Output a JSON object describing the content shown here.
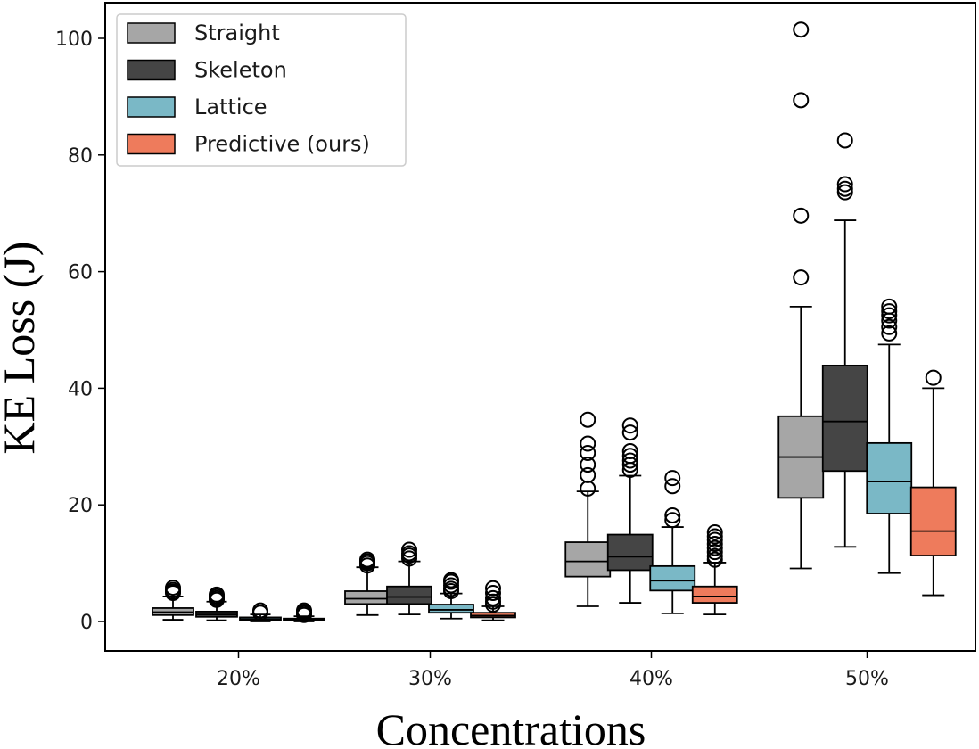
{
  "chart_data": {
    "type": "boxplot",
    "title": "",
    "xlabel": "Concentrations",
    "ylabel": "KE Loss (J)",
    "ylim": [
      -5,
      106
    ],
    "yticks": [
      0,
      20,
      40,
      60,
      80,
      100
    ],
    "categories": [
      "20%",
      "30%",
      "40%",
      "50%"
    ],
    "legend_position": "upper-left",
    "series": [
      {
        "name": "Straight",
        "color": "#a6a6a6",
        "boxes": [
          {
            "whislo": 0.3,
            "q1": 1.1,
            "med": 1.6,
            "q3": 2.3,
            "whishi": 4.3,
            "fliers": [
              4.9,
              5.1,
              5.4,
              5.8
            ]
          },
          {
            "whislo": 1.1,
            "q1": 3.0,
            "med": 3.9,
            "q3": 5.2,
            "whishi": 9.3,
            "fliers": [
              9.6,
              10.0,
              10.3,
              10.6
            ]
          },
          {
            "whislo": 2.6,
            "q1": 7.7,
            "med": 10.3,
            "q3": 13.6,
            "whishi": 22.3,
            "fliers": [
              22.8,
              25.1,
              26.9,
              28.9,
              30.5,
              34.6
            ]
          },
          {
            "whislo": 9.1,
            "q1": 21.2,
            "med": 28.2,
            "q3": 35.2,
            "whishi": 54.0,
            "fliers": [
              59.0,
              69.6,
              89.4,
              101.5
            ]
          }
        ]
      },
      {
        "name": "Skeleton",
        "color": "#454545",
        "boxes": [
          {
            "whislo": 0.2,
            "q1": 0.8,
            "med": 1.2,
            "q3": 1.7,
            "whishi": 3.4,
            "fliers": [
              3.7,
              4.0,
              4.3,
              4.6
            ]
          },
          {
            "whislo": 1.2,
            "q1": 3.0,
            "med": 4.2,
            "q3": 6.0,
            "whishi": 10.3,
            "fliers": [
              10.8,
              11.3,
              11.7,
              12.3
            ]
          },
          {
            "whislo": 3.2,
            "q1": 8.8,
            "med": 11.1,
            "q3": 14.9,
            "whishi": 25.0,
            "fliers": [
              26.0,
              26.9,
              27.6,
              28.4,
              29.2,
              32.4,
              33.6
            ]
          },
          {
            "whislo": 12.8,
            "q1": 25.8,
            "med": 34.3,
            "q3": 43.9,
            "whishi": 68.8,
            "fliers": [
              73.6,
              74.2,
              75.0,
              82.5
            ]
          }
        ]
      },
      {
        "name": "Lattice",
        "color": "#7ab8c6",
        "boxes": [
          {
            "whislo": 0.0,
            "q1": 0.2,
            "med": 0.4,
            "q3": 0.7,
            "whishi": 1.2,
            "fliers": [
              1.5,
              1.9
            ]
          },
          {
            "whislo": 0.5,
            "q1": 1.5,
            "med": 2.0,
            "q3": 2.9,
            "whishi": 4.8,
            "fliers": [
              5.2,
              5.6,
              6.2,
              6.8,
              7.1
            ]
          },
          {
            "whislo": 1.4,
            "q1": 5.3,
            "med": 7.0,
            "q3": 9.5,
            "whishi": 16.2,
            "fliers": [
              17.4,
              18.2,
              23.2,
              24.6
            ]
          },
          {
            "whislo": 8.3,
            "q1": 18.5,
            "med": 24.0,
            "q3": 30.6,
            "whishi": 47.5,
            "fliers": [
              49.4,
              50.5,
              51.6,
              52.5,
              53.2,
              54.0
            ]
          }
        ]
      },
      {
        "name": "Predictive (ours)",
        "color": "#ee7b5c",
        "boxes": [
          {
            "whislo": 0.0,
            "q1": 0.2,
            "med": 0.3,
            "q3": 0.5,
            "whishi": 0.9,
            "fliers": [
              1.1,
              1.4,
              1.6,
              1.9
            ]
          },
          {
            "whislo": 0.2,
            "q1": 0.7,
            "med": 1.0,
            "q3": 1.5,
            "whishi": 2.6,
            "fliers": [
              2.9,
              3.4,
              4.0,
              4.9,
              5.7
            ]
          },
          {
            "whislo": 1.2,
            "q1": 3.2,
            "med": 4.3,
            "q3": 6.0,
            "whishi": 10.1,
            "fliers": [
              10.6,
              11.2,
              11.9,
              12.6,
              13.3,
              14.0,
              14.6,
              15.3
            ]
          },
          {
            "whislo": 4.5,
            "q1": 11.3,
            "med": 15.5,
            "q3": 23.0,
            "whishi": 40.0,
            "fliers": [
              41.8
            ]
          }
        ]
      }
    ]
  }
}
